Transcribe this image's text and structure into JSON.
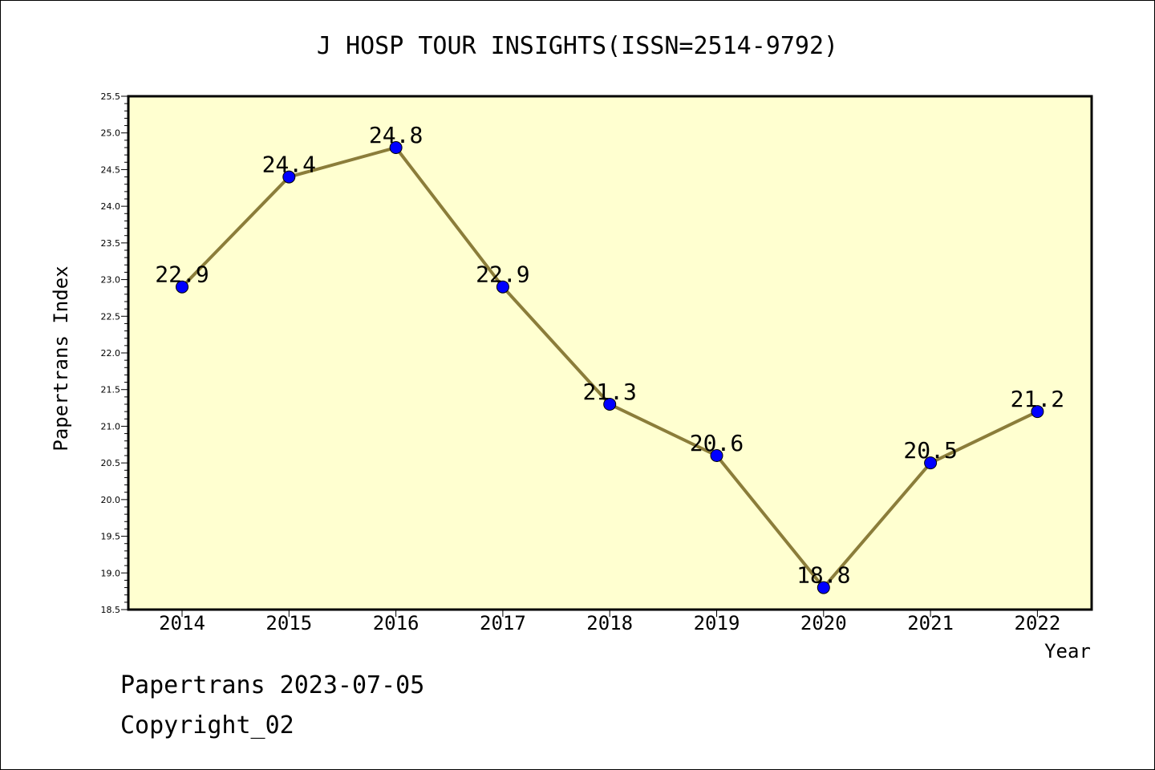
{
  "chart_data": {
    "type": "line",
    "title": "J HOSP TOUR INSIGHTS(ISSN=2514-9792)",
    "xlabel": "Year",
    "ylabel": "Papertrans Index",
    "categories": [
      "2014",
      "2015",
      "2016",
      "2017",
      "2018",
      "2019",
      "2020",
      "2021",
      "2022"
    ],
    "series": [
      {
        "values": [
          22.9,
          24.4,
          24.8,
          22.9,
          21.3,
          20.6,
          18.8,
          20.5,
          21.2
        ],
        "data_labels": [
          "22.9",
          "24.4",
          "24.8",
          "22.9",
          "21.3",
          "20.6",
          "18.8",
          "20.5",
          "21.2"
        ],
        "line_color": "#8b7d3a",
        "marker_color": "#0000ff"
      }
    ],
    "ylim": [
      18.5,
      25.5
    ],
    "yticks": [
      "18.5",
      "19.0",
      "19.5",
      "20.0",
      "20.5",
      "21.0",
      "21.5",
      "22.0",
      "22.5",
      "23.0",
      "23.5",
      "24.0",
      "24.5",
      "25.0",
      "25.5"
    ],
    "grid": false,
    "legend": "none",
    "plot_background": "#ffffd0"
  },
  "footer": {
    "line1": "Papertrans 2023-07-05",
    "line2": "Copyright_02"
  }
}
